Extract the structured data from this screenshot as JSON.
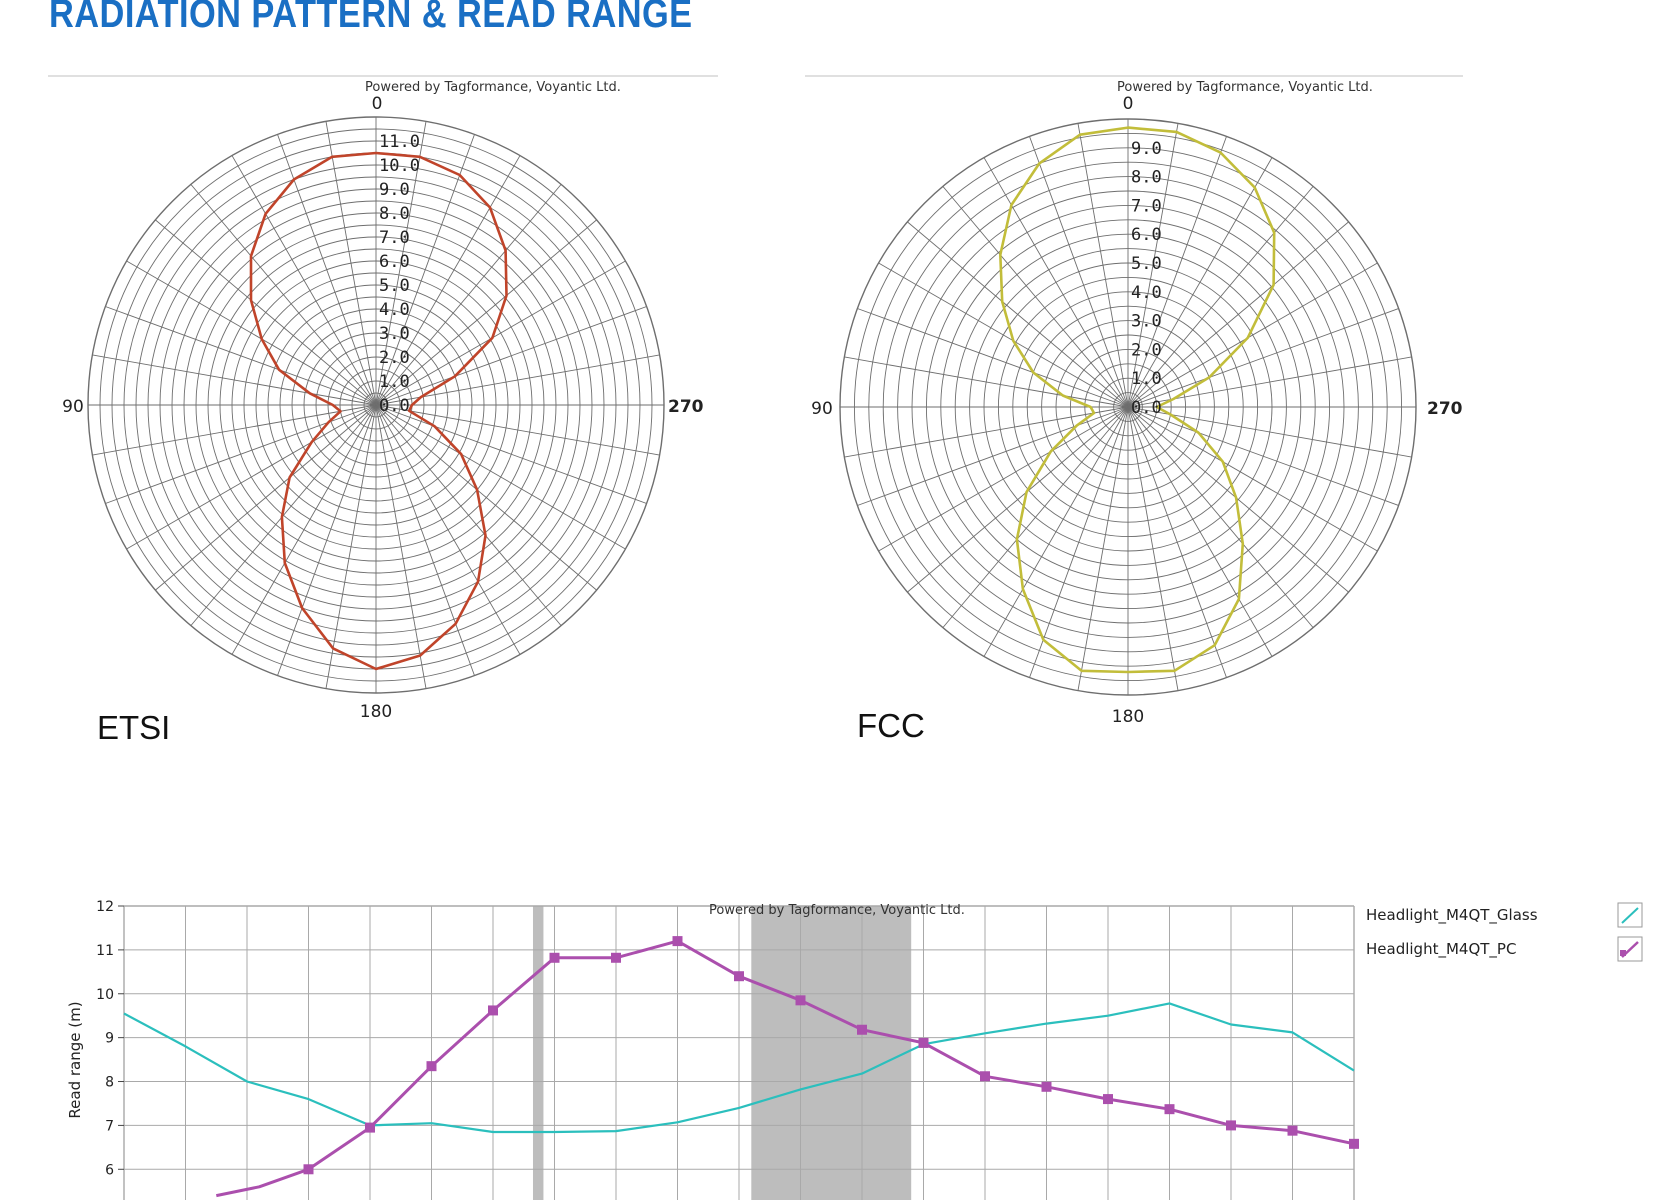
{
  "title": "RADIATION PATTERN & READ RANGE",
  "colors": {
    "title": "#1a6fc4",
    "etsi": "#c0442a",
    "fcc": "#c2bd3a",
    "glass": "#2bbfbd",
    "pc": "#ab4fad",
    "grid": "#6e6e6e",
    "band": "#bdbdbd"
  },
  "chart_data": [
    {
      "type": "polar",
      "region_label": "ETSI",
      "credit": "Powered by Tagformance, Voyantic Ltd.",
      "angle_labels": [
        "0",
        "90",
        "180",
        "270"
      ],
      "radial_ticks": [
        "0.0",
        "1.0",
        "2.0",
        "3.0",
        "4.0",
        "5.0",
        "6.0",
        "7.0",
        "8.0",
        "9.0",
        "10.0",
        "11.0"
      ],
      "rmax": 12,
      "series": [
        {
          "angle_step_deg": 10,
          "r": [
            10.5,
            10.5,
            10.0,
            9.2,
            8.1,
            6.8,
            5.5,
            4.3,
            2.8,
            1.8,
            1.5,
            2.1,
            3.1,
            4.7,
            6.1,
            7.6,
            9.0,
            10.3,
            11.0,
            10.6,
            9.7,
            8.5,
            7.1,
            5.5,
            4.1,
            2.6,
            1.4,
            1.5,
            1.9,
            3.5,
            5.6,
            7.1,
            8.4,
            9.5,
            10.2,
            10.5
          ]
        }
      ]
    },
    {
      "type": "polar",
      "region_label": "FCC",
      "credit": "Powered by Tagformance, Voyantic Ltd.",
      "angle_labels": [
        "0",
        "90",
        "180",
        "270"
      ],
      "radial_ticks": [
        "0.0",
        "1.0",
        "2.0",
        "3.0",
        "4.0",
        "5.0",
        "6.0",
        "7.0",
        "8.0",
        "9.0"
      ],
      "rmax": 10,
      "series": [
        {
          "angle_step_deg": 10,
          "r": [
            9.7,
            9.6,
            9.0,
            8.1,
            6.9,
            5.7,
            4.6,
            3.5,
            2.3,
            1.3,
            1.2,
            1.9,
            3.1,
            4.6,
            6.0,
            7.3,
            8.6,
            9.3,
            9.2,
            9.3,
            8.8,
            7.7,
            6.2,
            4.9,
            3.8,
            2.6,
            1.5,
            1.0,
            1.6,
            3.0,
            4.8,
            6.6,
            7.9,
            8.8,
            9.4,
            9.7
          ]
        }
      ]
    },
    {
      "type": "line",
      "credit": "Powered by Tagformance, Voyantic Ltd.",
      "ylabel": "Read range (m)",
      "yticks": [
        6,
        7,
        8,
        9,
        10,
        11,
        12
      ],
      "ylim": [
        5.3,
        12
      ],
      "x_index_range": [
        0,
        20
      ],
      "shaded_bands": [
        [
          6.65,
          6.82
        ],
        [
          10.2,
          12.8
        ]
      ],
      "series": [
        {
          "name": "Headlight_M4QT_Glass",
          "marker": false,
          "x": [
            0,
            1,
            2,
            3,
            4,
            5,
            6,
            7,
            8,
            9,
            10,
            11,
            12,
            13,
            14,
            15,
            16,
            17,
            18,
            19,
            20
          ],
          "values": [
            9.55,
            8.8,
            8.0,
            7.6,
            7.0,
            7.05,
            6.85,
            6.85,
            6.87,
            7.07,
            7.4,
            7.82,
            8.18,
            8.85,
            9.1,
            9.32,
            9.5,
            9.78,
            9.3,
            9.12,
            8.25
          ]
        },
        {
          "name": "Headlight_M4QT_PC",
          "marker": true,
          "x": [
            1.5,
            2.2,
            3,
            4,
            5,
            6,
            7,
            8,
            9,
            10,
            11,
            12,
            13,
            14,
            15,
            16,
            17,
            18,
            19,
            20
          ],
          "values": [
            5.4,
            5.6,
            6.0,
            6.95,
            8.35,
            9.62,
            10.82,
            10.82,
            11.2,
            10.4,
            9.85,
            9.18,
            8.88,
            8.12,
            7.88,
            7.6,
            7.37,
            7.0,
            6.88,
            6.58
          ]
        }
      ]
    }
  ]
}
